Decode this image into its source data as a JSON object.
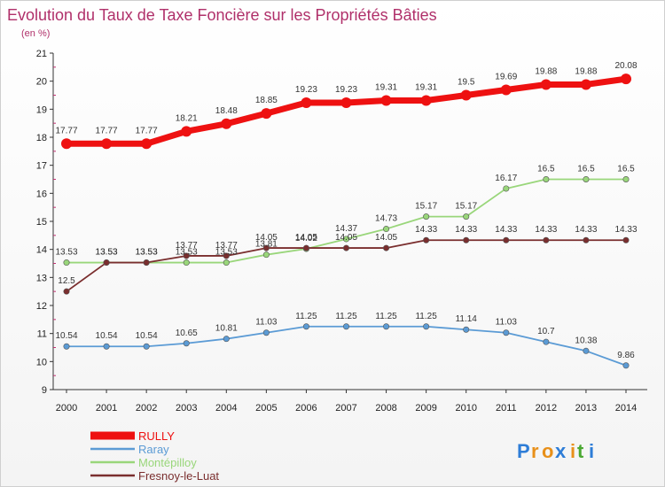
{
  "chart_data": {
    "type": "line",
    "title": "Evolution du Taux de Taxe Foncière sur les Propriétés Bâties",
    "subtitle": "(en %)",
    "xlabel": "",
    "ylabel": "",
    "ylim": [
      9,
      21
    ],
    "yticks": [
      9,
      10,
      11,
      12,
      13,
      14,
      15,
      16,
      17,
      18,
      19,
      20,
      21
    ],
    "categories": [
      "2000",
      "2001",
      "2002",
      "2003",
      "2004",
      "2005",
      "2006",
      "2007",
      "2008",
      "2009",
      "2010",
      "2011",
      "2012",
      "2013",
      "2014"
    ],
    "series": [
      {
        "name": "RULLY",
        "color": "#ee1111",
        "values": [
          17.77,
          17.77,
          17.77,
          18.21,
          18.48,
          18.85,
          19.23,
          19.23,
          19.31,
          19.31,
          19.5,
          19.69,
          19.88,
          19.88,
          20.08
        ],
        "labels": [
          "17.77",
          "17.77",
          "17.77",
          "18.21",
          "18.48",
          "18.85",
          "19.23",
          "19.23",
          "19.31",
          "19.31",
          "19.5",
          "19.69",
          "19.88",
          "19.88",
          "20.08"
        ]
      },
      {
        "name": "Raray",
        "color": "#5b9bd5",
        "values": [
          10.54,
          10.54,
          10.54,
          10.65,
          10.81,
          11.03,
          11.25,
          11.25,
          11.25,
          11.25,
          11.14,
          11.03,
          10.7,
          10.38,
          9.86
        ],
        "labels": [
          "10.54",
          "10.54",
          "10.54",
          "10.65",
          "10.81",
          "11.03",
          "11.25",
          "11.25",
          "11.25",
          "11.25",
          "11.14",
          "11.03",
          "10.7",
          "10.38",
          "9.86"
        ]
      },
      {
        "name": "Montépilloy",
        "color": "#99d67a",
        "values": [
          13.53,
          13.53,
          13.53,
          13.53,
          13.53,
          13.81,
          14.02,
          14.37,
          14.73,
          15.17,
          15.17,
          16.17,
          16.5,
          16.5,
          16.5
        ],
        "labels": [
          "13.53",
          "13.53",
          "13.53",
          "13.53",
          "13.53",
          "13.81",
          "14.02",
          "14.37",
          "14.73",
          "15.17",
          "15.17",
          "16.17",
          "16.5",
          "16.5",
          "16.5"
        ]
      },
      {
        "name": "Fresnoy-le-Luat",
        "color": "#7a2e2e",
        "values": [
          12.5,
          13.53,
          13.53,
          13.77,
          13.77,
          14.05,
          14.05,
          14.05,
          14.05,
          14.33,
          14.33,
          14.33,
          14.33,
          14.33,
          14.33
        ],
        "labels": [
          "12.5",
          "13.53",
          "13.53",
          "13.77",
          "13.77",
          "14.05",
          "14.05",
          "14.05",
          "14.05",
          "14.33",
          "14.33",
          "14.33",
          "14.33",
          "14.33",
          "14.33"
        ]
      }
    ],
    "legend_position": "bottom-left"
  },
  "logo": {
    "letters": [
      "P",
      "r",
      "o",
      "x",
      "i",
      "t",
      "i"
    ],
    "colors": [
      "#2e7dd7",
      "#e8901a",
      "#e8901a",
      "#2e7dd7",
      "#e8901a",
      "#4aa832",
      "#2e7dd7"
    ]
  }
}
